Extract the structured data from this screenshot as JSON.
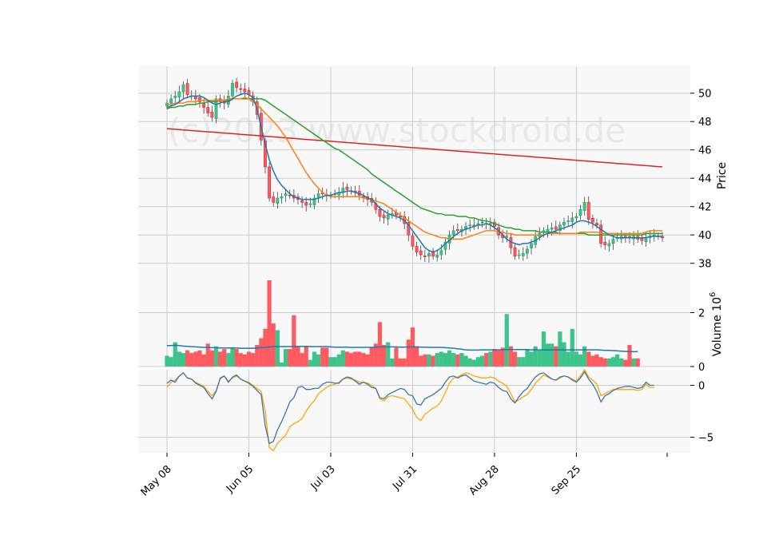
{
  "watermark": "(c)2023 www.stockdroid.de",
  "colors": {
    "up": "#26a269",
    "up_fill": "#3cc48a",
    "down": "#e0202a",
    "down_fill": "#ff5a5f",
    "ma_fast": "#1f77b4",
    "ma_mid": "#ff7f0e",
    "ma_slow": "#2ca02c",
    "ma_long": "#d62728",
    "vol_ma": "#1f77b4",
    "macd": "#3a76b0",
    "signal": "#ffa500",
    "panel_bg": "#f8f8f8",
    "grid": "#cccccc"
  },
  "chart_data": [
    {
      "panel": "price",
      "type": "candlestick",
      "ylabel": "Price",
      "ylim": [
        36.8,
        51.9
      ],
      "yticks": [
        38,
        40,
        42,
        44,
        46,
        48,
        50
      ],
      "x_tick_labels": [
        "May 08",
        "Jun 05",
        "Jul 03",
        "Jul 31",
        "Aug 28",
        "Sep 25"
      ],
      "close": [
        49.3,
        49.6,
        49.8,
        50.1,
        50.6,
        49.9,
        49.8,
        49.6,
        49.4,
        49.0,
        48.6,
        48.3,
        49.6,
        49.4,
        49.3,
        49.8,
        50.7,
        50.4,
        50.3,
        50.1,
        49.9,
        49.4,
        48.5,
        46.7,
        44.8,
        42.6,
        42.3,
        42.6,
        42.7,
        42.9,
        42.8,
        42.6,
        42.5,
        42.3,
        42.1,
        42.2,
        42.6,
        42.9,
        42.9,
        42.8,
        42.8,
        42.9,
        43.0,
        43.3,
        43.2,
        43.1,
        43.0,
        42.8,
        42.7,
        42.5,
        42.3,
        41.8,
        41.3,
        41.2,
        41.4,
        41.5,
        41.4,
        41.3,
        40.8,
        40.0,
        39.2,
        38.8,
        38.6,
        38.5,
        38.7,
        38.5,
        38.6,
        38.9,
        39.5,
        40.0,
        40.3,
        40.3,
        40.4,
        40.6,
        40.7,
        40.7,
        40.8,
        40.9,
        40.8,
        40.8,
        40.6,
        40.0,
        39.8,
        39.9,
        39.1,
        38.5,
        38.6,
        38.7,
        39.0,
        39.4,
        39.9,
        40.1,
        40.3,
        40.4,
        40.5,
        40.4,
        40.7,
        40.9,
        41.0,
        41.2,
        41.3,
        41.8,
        42.3,
        41.1,
        40.9,
        40.7,
        39.4,
        39.3,
        39.4,
        39.7,
        39.8,
        39.9,
        39.8,
        39.8,
        39.9,
        39.7,
        39.6,
        39.8,
        39.9,
        40.0,
        39.9,
        39.8
      ],
      "ma_fast": [
        49.0,
        49.1,
        49.2,
        49.4,
        49.6,
        49.7,
        49.8,
        49.8,
        49.8,
        49.7,
        49.5,
        49.3,
        49.2,
        49.3,
        49.4,
        49.4,
        49.6,
        49.8,
        49.9,
        50.0,
        49.9,
        49.7,
        48.9,
        47.6,
        46.4,
        45.3,
        44.5,
        43.9,
        43.5,
        43.2,
        42.9,
        42.7,
        42.6,
        42.5,
        42.5,
        42.5,
        42.5,
        42.6,
        42.7,
        42.8,
        42.8,
        42.9,
        43.0,
        43.0,
        43.1,
        43.1,
        43.0,
        42.9,
        42.8,
        42.6,
        42.5,
        42.2,
        41.9,
        41.7,
        41.5,
        41.4,
        41.3,
        41.2,
        41.0,
        40.7,
        40.3,
        39.9,
        39.5,
        39.1,
        38.9,
        38.8,
        38.9,
        39.1,
        39.4,
        39.6,
        39.9,
        40.1,
        40.3,
        40.4,
        40.5,
        40.6,
        40.7,
        40.7,
        40.8,
        40.7,
        40.5,
        40.3,
        40.0,
        39.7,
        39.5,
        39.4,
        39.3,
        39.4,
        39.4,
        39.5,
        39.6,
        39.8,
        40.0,
        40.1,
        40.2,
        40.3,
        40.4,
        40.5,
        40.6,
        40.7,
        40.9,
        41.0,
        41.0,
        40.9,
        40.8,
        40.6,
        40.4,
        40.2,
        40.0,
        39.9,
        39.8,
        39.8,
        39.8,
        39.8,
        39.8,
        39.8,
        39.8,
        39.8,
        39.9,
        39.9,
        39.9,
        39.9
      ],
      "ma_mid": [
        49.2,
        49.2,
        49.3,
        49.3,
        49.3,
        49.4,
        49.4,
        49.4,
        49.5,
        49.5,
        49.5,
        49.5,
        49.5,
        49.5,
        49.5,
        49.6,
        49.6,
        49.6,
        49.6,
        49.7,
        49.6,
        49.4,
        49.2,
        48.9,
        48.6,
        48.3,
        48.0,
        47.7,
        47.3,
        46.9,
        46.4,
        45.9,
        45.4,
        44.9,
        44.4,
        44.0,
        43.6,
        43.3,
        43.0,
        42.8,
        42.7,
        42.7,
        42.7,
        42.7,
        42.7,
        42.7,
        42.7,
        42.7,
        42.6,
        42.6,
        42.5,
        42.4,
        42.3,
        42.2,
        42.0,
        41.8,
        41.6,
        41.4,
        41.2,
        41.0,
        40.8,
        40.6,
        40.4,
        40.2,
        40.1,
        40.0,
        39.9,
        39.8,
        39.8,
        39.7,
        39.7,
        39.7,
        39.7,
        39.8,
        39.9,
        40.0,
        40.1,
        40.2,
        40.3,
        40.3,
        40.3,
        40.2,
        40.2,
        40.1,
        40.1,
        40.0,
        40.0,
        40.0,
        40.0,
        40.0,
        40.0,
        40.0,
        40.0,
        40.1,
        40.1,
        40.1,
        40.1,
        40.1,
        40.1,
        40.1,
        40.1,
        40.2,
        40.2,
        40.2,
        40.2,
        40.2,
        40.1,
        40.1,
        40.1,
        40.1,
        40.1,
        40.1,
        40.1,
        40.1,
        40.1,
        40.1,
        40.1,
        40.2,
        40.3,
        40.3,
        40.3,
        40.3
      ],
      "ma_slow": [
        48.9,
        49.0,
        49.0,
        49.1,
        49.1,
        49.2,
        49.2,
        49.2,
        49.3,
        49.3,
        49.4,
        49.4,
        49.4,
        49.5,
        49.5,
        49.5,
        49.6,
        49.6,
        49.6,
        49.6,
        49.6,
        49.6,
        49.6,
        49.6,
        49.5,
        49.3,
        49.1,
        48.9,
        48.7,
        48.5,
        48.3,
        48.1,
        47.9,
        47.7,
        47.5,
        47.3,
        47.1,
        46.9,
        46.7,
        46.5,
        46.3,
        46.1,
        46.0,
        45.8,
        45.6,
        45.4,
        45.2,
        45.0,
        44.8,
        44.6,
        44.3,
        44.1,
        43.9,
        43.7,
        43.5,
        43.3,
        43.1,
        42.9,
        42.7,
        42.5,
        42.3,
        42.1,
        41.9,
        41.8,
        41.7,
        41.6,
        41.5,
        41.5,
        41.4,
        41.4,
        41.4,
        41.3,
        41.3,
        41.3,
        41.2,
        41.2,
        41.1,
        41.0,
        41.0,
        40.9,
        40.8,
        40.7,
        40.6,
        40.5,
        40.5,
        40.4,
        40.4,
        40.3,
        40.3,
        40.3,
        40.3,
        40.2,
        40.2,
        40.2,
        40.2,
        40.2,
        40.1,
        40.1,
        40.1,
        40.1,
        40.1,
        40.1,
        40.1,
        40.0,
        40.0,
        40.0,
        40.0,
        40.0,
        40.0,
        40.0,
        40.0,
        40.0,
        40.0,
        40.0,
        40.0,
        40.0,
        40.0,
        40.1,
        40.1,
        40.1,
        40.1,
        40.1
      ],
      "ma_long_start": 47.5,
      "ma_long_end": 44.8
    },
    {
      "panel": "volume",
      "type": "bar",
      "ylabel": "Volume  10^6",
      "ylim": [
        0,
        3.2
      ],
      "yticks": [
        0,
        2
      ],
      "values": [
        0.4,
        0.35,
        0.9,
        0.55,
        0.5,
        0.6,
        0.5,
        0.55,
        0.6,
        0.45,
        0.85,
        0.6,
        0.75,
        0.55,
        0.65,
        0.5,
        0.7,
        0.65,
        0.5,
        0.45,
        0.55,
        0.5,
        0.8,
        1.05,
        1.4,
        3.2,
        1.6,
        1.35,
        0.15,
        0.65,
        0.65,
        1.9,
        0.75,
        0.5,
        0.75,
        0.25,
        0.55,
        0.45,
        0.7,
        0.7,
        0.35,
        0.35,
        0.45,
        0.6,
        0.55,
        0.5,
        0.55,
        0.55,
        0.5,
        0.45,
        0.7,
        0.85,
        1.65,
        0.8,
        0.9,
        0.3,
        0.7,
        0.3,
        0.3,
        1.0,
        1.45,
        0.75,
        0.4,
        0.45,
        0.45,
        0.4,
        0.5,
        0.55,
        0.5,
        0.6,
        0.5,
        0.45,
        0.5,
        0.4,
        0.3,
        0.25,
        0.35,
        0.4,
        0.5,
        0.55,
        0.65,
        0.6,
        0.7,
        1.95,
        0.75,
        0.55,
        0.35,
        0.35,
        0.65,
        0.55,
        0.75,
        0.6,
        1.3,
        0.85,
        0.85,
        0.75,
        1.3,
        0.9,
        0.55,
        1.4,
        0.55,
        0.45,
        0.75,
        0.55,
        0.4,
        0.45,
        0.35,
        0.3,
        0.3,
        0.35,
        0.45,
        0.3,
        0.25,
        0.8,
        0.3,
        0.3
      ],
      "ma": [
        0.78,
        0.78,
        0.79,
        0.78,
        0.76,
        0.75,
        0.74,
        0.73,
        0.72,
        0.71,
        0.71,
        0.7,
        0.7,
        0.69,
        0.69,
        0.69,
        0.69,
        0.69,
        0.68,
        0.68,
        0.68,
        0.68,
        0.69,
        0.7,
        0.71,
        0.73,
        0.74,
        0.74,
        0.74,
        0.74,
        0.74,
        0.75,
        0.75,
        0.75,
        0.75,
        0.74,
        0.74,
        0.74,
        0.74,
        0.74,
        0.73,
        0.72,
        0.72,
        0.72,
        0.72,
        0.71,
        0.71,
        0.71,
        0.71,
        0.71,
        0.71,
        0.72,
        0.73,
        0.73,
        0.73,
        0.73,
        0.73,
        0.72,
        0.72,
        0.73,
        0.73,
        0.73,
        0.72,
        0.72,
        0.71,
        0.71,
        0.71,
        0.71,
        0.7,
        0.69,
        0.68,
        0.66,
        0.64,
        0.62,
        0.61,
        0.61,
        0.61,
        0.62,
        0.62,
        0.62,
        0.62,
        0.62,
        0.62,
        0.63,
        0.63,
        0.63,
        0.63,
        0.63,
        0.63,
        0.62,
        0.62,
        0.62,
        0.62,
        0.62,
        0.62,
        0.62,
        0.62,
        0.62,
        0.62,
        0.62,
        0.62,
        0.62,
        0.62,
        0.62,
        0.62,
        0.62,
        0.61,
        0.6,
        0.6,
        0.59,
        0.58,
        0.57,
        0.56,
        0.56,
        0.55,
        0.55
      ]
    },
    {
      "panel": "oscillator",
      "type": "line",
      "ylim": [
        -6.5,
        1.5
      ],
      "yticks": [
        -5,
        0
      ],
      "x_tick_labels": [
        "May 08",
        "Jun 05",
        "Jul 03",
        "Jul 31",
        "Aug 28",
        "Sep 25"
      ],
      "series": [
        {
          "values": [
            0.2,
            0.5,
            0.3,
            0.9,
            1.2,
            0.7,
            0.6,
            0.2,
            0.0,
            -0.2,
            -0.8,
            -1.3,
            -0.6,
            0.7,
            0.9,
            0.3,
            0.8,
            1.0,
            0.6,
            0.4,
            0.2,
            -0.1,
            -0.5,
            -0.9,
            -3.9,
            -5.6,
            -5.4,
            -4.3,
            -3.5,
            -2.6,
            -1.6,
            -1.2,
            -0.2,
            -0.1,
            -0.4,
            -0.4,
            -0.3,
            -0.3,
            0.1,
            0.3,
            0.3,
            0.2,
            0.2,
            0.6,
            0.8,
            0.7,
            0.4,
            0.1,
            0.3,
            0.1,
            -0.2,
            -0.3,
            -1.2,
            -1.3,
            -0.9,
            -0.7,
            -0.5,
            -0.3,
            -0.4,
            -0.9,
            -1.0,
            -1.8,
            -1.9,
            -1.3,
            -1.1,
            -0.9,
            -0.6,
            -0.3,
            0.3,
            0.8,
            0.9,
            0.7,
            0.9,
            1.0,
            0.7,
            0.4,
            0.3,
            0.2,
            0.1,
            0.3,
            0.2,
            -0.2,
            -0.5,
            -0.6,
            -1.3,
            -1.7,
            -1.1,
            -0.6,
            -0.3,
            0.3,
            0.8,
            1.1,
            1.2,
            0.9,
            0.6,
            0.5,
            0.8,
            0.9,
            0.8,
            0.5,
            0.3,
            0.7,
            1.3,
            0.6,
            0.1,
            -0.6,
            -1.6,
            -1.0,
            -0.8,
            -0.5,
            -0.3,
            -0.2,
            -0.1,
            -0.1,
            -0.2,
            -0.3,
            -0.2,
            0.3,
            0.0,
            0.0
          ]
        },
        {
          "values": [
            -0.2,
            0.3,
            0.5,
            0.9,
            1.2,
            0.7,
            0.6,
            0.3,
            0.1,
            -0.1,
            -0.6,
            -1.0,
            -0.5,
            0.6,
            0.9,
            0.4,
            0.7,
            0.9,
            0.6,
            0.4,
            0.3,
            0.0,
            -0.3,
            -0.6,
            -2.5,
            -6.0,
            -6.3,
            -5.6,
            -5.2,
            -4.8,
            -4.0,
            -3.7,
            -3.5,
            -3.2,
            -2.5,
            -1.9,
            -1.5,
            -0.8,
            -0.5,
            -0.2,
            0.0,
            0.1,
            0.3,
            0.6,
            0.7,
            0.6,
            0.5,
            0.3,
            0.3,
            0.2,
            0.0,
            -0.3,
            -1.3,
            -1.5,
            -1.1,
            -1.0,
            -1.1,
            -1.2,
            -1.3,
            -1.8,
            -2.3,
            -3.1,
            -3.4,
            -2.8,
            -2.5,
            -2.2,
            -2.0,
            -1.5,
            -0.7,
            0.2,
            0.7,
            0.8,
            1.0,
            1.2,
            1.1,
            0.9,
            0.8,
            0.7,
            0.7,
            0.8,
            0.7,
            0.4,
            0.2,
            -0.1,
            -0.8,
            -1.6,
            -1.4,
            -1.1,
            -0.9,
            -0.4,
            0.2,
            0.6,
            1.0,
            0.8,
            0.6,
            0.5,
            0.7,
            0.9,
            0.8,
            0.6,
            0.4,
            0.9,
            1.5,
            0.8,
            0.5,
            0.1,
            -1.0,
            -0.8,
            -0.6,
            -0.4,
            -0.4,
            -0.4,
            -0.4,
            -0.4,
            -0.4,
            -0.5,
            -0.4,
            0.1,
            -0.2,
            -0.2
          ]
        }
      ]
    }
  ]
}
